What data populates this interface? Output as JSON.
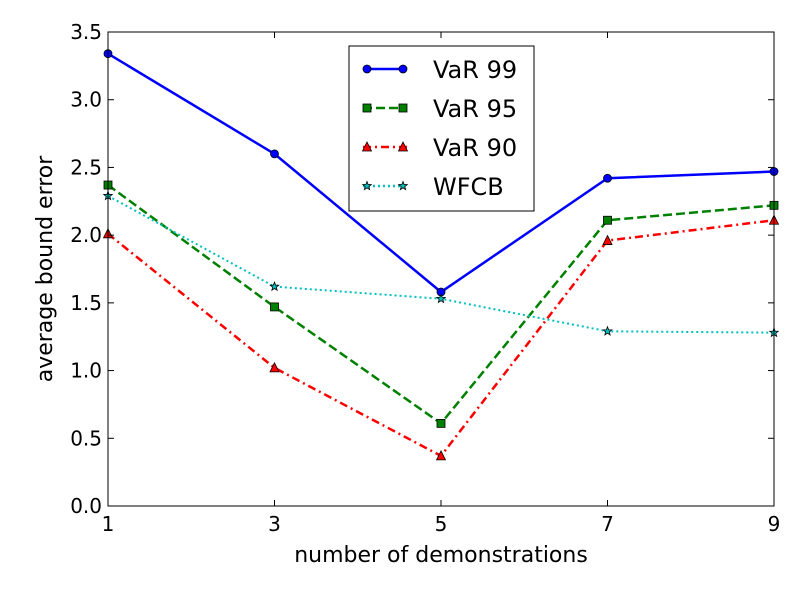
{
  "chart_data": {
    "type": "line",
    "title": "",
    "xlabel": "number of demonstrations",
    "ylabel": "average bound error",
    "x": [
      1,
      3,
      5,
      7,
      9
    ],
    "xlim": [
      1,
      9
    ],
    "ylim": [
      0.0,
      3.5
    ],
    "xticks": [
      1,
      3,
      5,
      7,
      9
    ],
    "xtick_labels": [
      "1",
      "3",
      "5",
      "7",
      "9"
    ],
    "yticks": [
      0.0,
      0.5,
      1.0,
      1.5,
      2.0,
      2.5,
      3.0,
      3.5
    ],
    "ytick_labels": [
      "0.0",
      "0.5",
      "1.0",
      "1.5",
      "2.0",
      "2.5",
      "3.0",
      "3.5"
    ],
    "grid": false,
    "legend_position": "top-center",
    "series": [
      {
        "name": "VaR 99",
        "values": [
          3.34,
          2.6,
          1.58,
          2.42,
          2.47
        ],
        "color": "#0000ff",
        "line_style": "solid",
        "marker": "circle"
      },
      {
        "name": "VaR 95",
        "values": [
          2.37,
          1.47,
          0.61,
          2.11,
          2.22
        ],
        "color": "#008000",
        "line_style": "dashed",
        "marker": "square"
      },
      {
        "name": "VaR 90",
        "values": [
          2.01,
          1.02,
          0.37,
          1.96,
          2.11
        ],
        "color": "#ff0000",
        "line_style": "dashdot",
        "marker": "triangle"
      },
      {
        "name": "WFCB",
        "values": [
          2.29,
          1.62,
          1.53,
          1.29,
          1.28
        ],
        "color": "#00bfbf",
        "line_style": "dotted",
        "marker": "star"
      }
    ]
  }
}
